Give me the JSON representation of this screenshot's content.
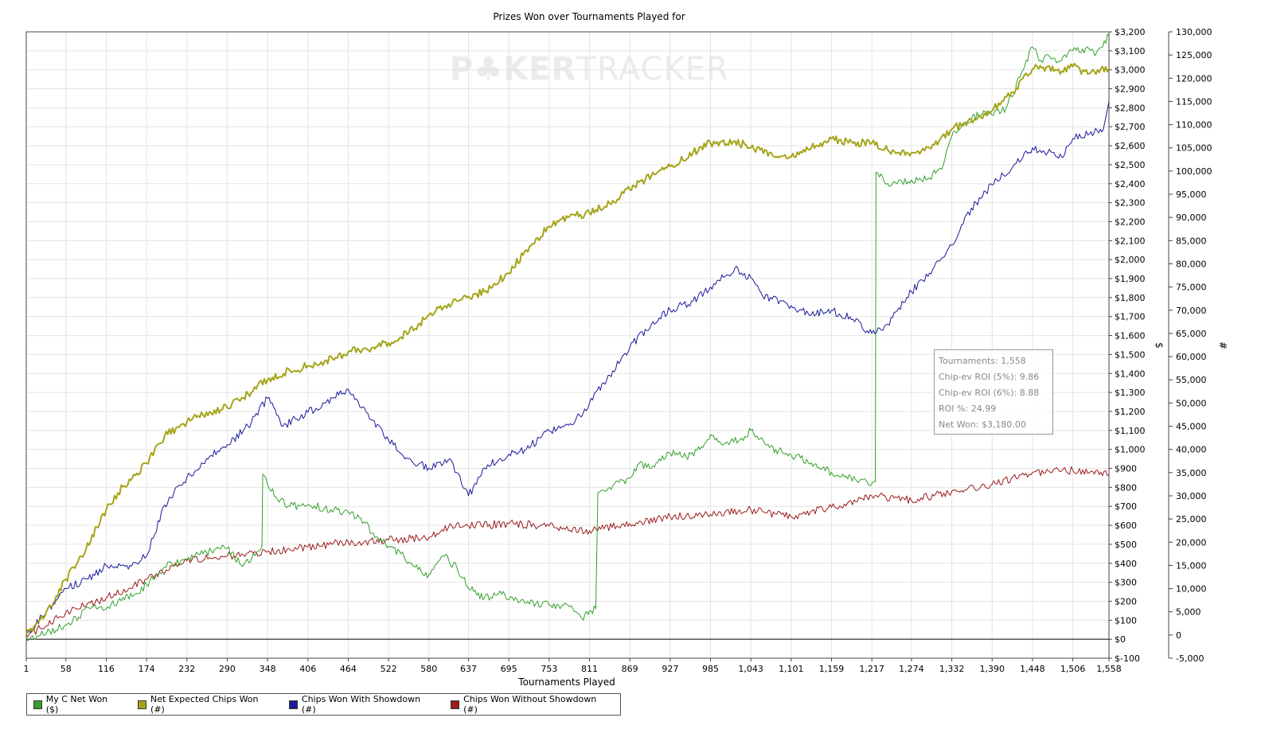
{
  "chart_data": {
    "type": "line",
    "title": "Prizes Won over Tournaments Played for",
    "xlabel": "Tournaments Played",
    "ylabel_left": "$",
    "ylabel_right": "#",
    "x_ticks": [
      "1",
      "58",
      "116",
      "174",
      "232",
      "290",
      "348",
      "406",
      "464",
      "522",
      "580",
      "637",
      "695",
      "753",
      "811",
      "869",
      "927",
      "985",
      "1,043",
      "1,101",
      "1,159",
      "1,217",
      "1,274",
      "1,332",
      "1,390",
      "1,448",
      "1,506",
      "1,558"
    ],
    "xlim": [
      1,
      1558
    ],
    "y_left_ticks": [
      "$3,200",
      "$3,100",
      "$3,000",
      "$2,900",
      "$2,800",
      "$2,700",
      "$2,600",
      "$2,500",
      "$2,400",
      "$2,300",
      "$2,200",
      "$2,100",
      "$2,000",
      "$1,900",
      "$1,800",
      "$1,700",
      "$1,600",
      "$1,500",
      "$1,400",
      "$1,300",
      "$1,200",
      "$1,100",
      "$1,000",
      "$900",
      "$800",
      "$700",
      "$600",
      "$500",
      "$400",
      "$300",
      "$200",
      "$100",
      "$0",
      "$-100"
    ],
    "ylim_left": [
      -100,
      3200
    ],
    "y_right_ticks": [
      "130,000",
      "125,000",
      "120,000",
      "115,000",
      "110,000",
      "105,000",
      "100,000",
      "95,000",
      "90,000",
      "85,000",
      "80,000",
      "75,000",
      "70,000",
      "65,000",
      "60,000",
      "55,000",
      "50,000",
      "45,000",
      "40,000",
      "35,000",
      "30,000",
      "25,000",
      "20,000",
      "15,000",
      "10,000",
      "5,000",
      "0",
      "-5,000"
    ],
    "ylim_right": [
      -5000,
      130000
    ],
    "grid": true,
    "legend_position": "bottom-left",
    "series": [
      {
        "name": "My C Net Won ($)",
        "color": "#33a02c",
        "axis": "left",
        "x": [
          1,
          30,
          60,
          100,
          116,
          140,
          160,
          174,
          200,
          232,
          260,
          290,
          310,
          330,
          340,
          341,
          360,
          380,
          406,
          430,
          464,
          480,
          500,
          522,
          540,
          560,
          580,
          600,
          620,
          640,
          660,
          680,
          700,
          720,
          753,
          780,
          800,
          811,
          820,
          823,
          840,
          869,
          880,
          900,
          927,
          950,
          970,
          985,
          1000,
          1030,
          1043,
          1070,
          1101,
          1130,
          1159,
          1180,
          1200,
          1217,
          1222,
          1223,
          1240,
          1260,
          1274,
          1300,
          1320,
          1332,
          1350,
          1380,
          1390,
          1410,
          1430,
          1448,
          1460,
          1470,
          1480,
          1490,
          1506,
          1520,
          1540,
          1558
        ],
        "values": [
          0,
          30,
          80,
          180,
          160,
          220,
          240,
          290,
          380,
          420,
          460,
          480,
          390,
          440,
          490,
          870,
          750,
          700,
          710,
          690,
          670,
          640,
          560,
          490,
          450,
          380,
          340,
          440,
          380,
          260,
          220,
          240,
          220,
          190,
          180,
          180,
          110,
          150,
          160,
          770,
          800,
          850,
          920,
          900,
          980,
          960,
          1000,
          1080,
          1030,
          1060,
          1100,
          1010,
          970,
          930,
          880,
          860,
          840,
          820,
          830,
          2460,
          2400,
          2410,
          2420,
          2430,
          2500,
          2650,
          2720,
          2780,
          2760,
          2800,
          2960,
          3120,
          3050,
          3080,
          3060,
          3050,
          3100,
          3110,
          3090,
          3180
        ]
      },
      {
        "name": "Net Expected Chips Won (#)",
        "color": "#a5a51a",
        "axis": "right",
        "x": [
          1,
          30,
          58,
          80,
          116,
          140,
          174,
          200,
          232,
          260,
          290,
          320,
          348,
          380,
          406,
          430,
          464,
          500,
          522,
          560,
          580,
          620,
          637,
          660,
          695,
          720,
          753,
          780,
          811,
          840,
          869,
          900,
          927,
          960,
          985,
          1020,
          1043,
          1070,
          1101,
          1130,
          1159,
          1190,
          1217,
          1240,
          1274,
          1300,
          1332,
          1360,
          1390,
          1420,
          1448,
          1470,
          1490,
          1506,
          1530,
          1558
        ],
        "values": [
          0,
          5000,
          12000,
          17000,
          27000,
          32000,
          37000,
          43000,
          46000,
          48000,
          49000,
          52000,
          55000,
          57000,
          58000,
          59000,
          61000,
          62000,
          63000,
          66000,
          69000,
          72000,
          73000,
          74000,
          78000,
          83000,
          88000,
          90000,
          91000,
          93000,
          96000,
          99000,
          101000,
          104000,
          106000,
          106500,
          105000,
          104000,
          103000,
          105000,
          107000,
          106000,
          106000,
          104500,
          104000,
          105000,
          109000,
          111000,
          113000,
          117000,
          122000,
          122500,
          121500,
          122500,
          121000,
          122000
        ]
      },
      {
        "name": "Chips Won With Showdown (#)",
        "color": "#1a1a9c",
        "axis": "right",
        "x": [
          1,
          30,
          58,
          90,
          116,
          150,
          174,
          200,
          232,
          260,
          290,
          320,
          348,
          370,
          406,
          430,
          464,
          490,
          522,
          550,
          580,
          610,
          620,
          637,
          660,
          695,
          720,
          753,
          790,
          811,
          840,
          869,
          900,
          927,
          960,
          985,
          1020,
          1043,
          1060,
          1101,
          1130,
          1159,
          1190,
          1217,
          1240,
          1274,
          1300,
          1332,
          1360,
          1390,
          1420,
          1448,
          1470,
          1490,
          1506,
          1530,
          1550,
          1558
        ],
        "values": [
          0,
          5000,
          10000,
          12000,
          15000,
          15000,
          17000,
          28000,
          34000,
          38000,
          41000,
          45000,
          51000,
          45000,
          48000,
          50000,
          53000,
          48000,
          42000,
          38000,
          36000,
          38000,
          35000,
          30000,
          36000,
          39000,
          40000,
          44000,
          46000,
          50000,
          56000,
          62000,
          67000,
          70000,
          72000,
          75000,
          79000,
          77000,
          73000,
          71000,
          69000,
          70000,
          68000,
          65000,
          67000,
          74000,
          78000,
          84000,
          92000,
          97000,
          101000,
          105000,
          104000,
          103000,
          107000,
          108000,
          109000,
          115000
        ]
      },
      {
        "name": "Chips Won Without Showdown (#)",
        "color": "#9c1a1a",
        "axis": "right",
        "x": [
          1,
          30,
          58,
          100,
          116,
          174,
          232,
          290,
          348,
          406,
          464,
          522,
          580,
          620,
          637,
          695,
          753,
          811,
          869,
          927,
          985,
          1043,
          1101,
          1159,
          1217,
          1274,
          1332,
          1390,
          1448,
          1506,
          1530,
          1558
        ],
        "values": [
          0,
          2000,
          5000,
          7000,
          8000,
          12000,
          16000,
          17000,
          18000,
          19000,
          20000,
          20500,
          21000,
          24000,
          23500,
          24000,
          23500,
          22500,
          24000,
          25500,
          26000,
          27000,
          25500,
          27500,
          30000,
          29000,
          31000,
          32500,
          35000,
          35500,
          35000,
          34500
        ]
      }
    ]
  },
  "summary": {
    "tournaments": "Tournaments: 1,558",
    "chip_ev_roi_5": "Chip-ev ROI (5%): 9.86",
    "chip_ev_roi_6": "Chip-ev ROI (6%): 8.88",
    "roi": "ROI %: 24.99",
    "net_won": "Net Won: $3,180.00"
  },
  "watermark": {
    "part1": "P",
    "symbol": "♣",
    "part2": "KER",
    "part3": "TRACKER"
  }
}
